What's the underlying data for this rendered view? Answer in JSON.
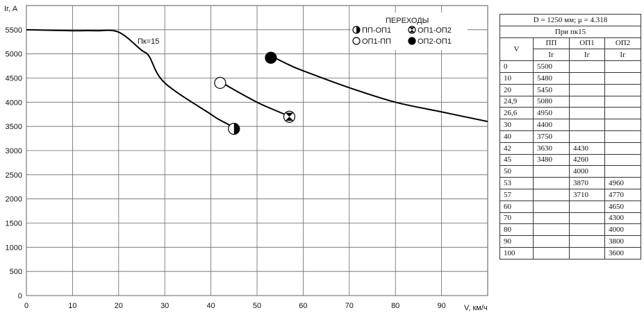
{
  "chart_data": {
    "type": "line",
    "y_axis_label": "Iг, А",
    "x_axis_label": "V, км/ч",
    "x_ticks": [
      0,
      10,
      20,
      30,
      40,
      50,
      60,
      70,
      80,
      90
    ],
    "y_ticks": [
      0,
      500,
      1000,
      1500,
      2000,
      2500,
      3000,
      3500,
      4000,
      4500,
      5000,
      5500
    ],
    "xlim": [
      0,
      100
    ],
    "ylim": [
      0,
      6000
    ],
    "grid": true,
    "legend_position": "top-right",
    "series": [
      {
        "name": "ПП",
        "x": [
          0,
          10,
          15,
          20,
          24.9,
          26.6,
          30,
          40,
          42,
          45
        ],
        "y": [
          5500,
          5480,
          5480,
          5450,
          5080,
          4950,
          4400,
          3750,
          3630,
          3480
        ]
      },
      {
        "name": "ОП1",
        "x": [
          42,
          45,
          50,
          53,
          57
        ],
        "y": [
          4430,
          4260,
          4000,
          3870,
          3710
        ]
      },
      {
        "name": "ОП2",
        "x": [
          53,
          57,
          60,
          70,
          80,
          90,
          100
        ],
        "y": [
          4960,
          4770,
          4650,
          4300,
          4000,
          3800,
          3600
        ]
      }
    ],
    "curve_annotation": "Пк=15",
    "legend": {
      "title": "ПЕРЕХОДЫ",
      "items": [
        {
          "label": "ПП-ОП1",
          "marker": "half-black-circle"
        },
        {
          "label": "ОП1-ОП2",
          "marker": "hourglass-circle"
        },
        {
          "label": "ОП1-ПП",
          "marker": "open-circle"
        },
        {
          "label": "ОП2-ОП1",
          "marker": "filled-circle"
        }
      ]
    },
    "transition_markers": [
      {
        "marker": "open-circle",
        "x": 42,
        "y": 4400
      },
      {
        "marker": "half-black-circle",
        "x": 45,
        "y": 3450
      },
      {
        "marker": "hourglass-circle",
        "x": 57,
        "y": 3700
      },
      {
        "marker": "filled-circle",
        "x": 53,
        "y": 4920
      }
    ]
  },
  "table": {
    "title": "D = 1250 мм; μ = 4.318",
    "subtitle": "При пк15",
    "v_header": "V",
    "columns": [
      "ПП",
      "ОП1",
      "ОП2"
    ],
    "unit": "Iг",
    "rows": [
      {
        "v": "0",
        "pp": "5500",
        "op1": "",
        "op2": ""
      },
      {
        "v": "10",
        "pp": "5480",
        "op1": "",
        "op2": ""
      },
      {
        "v": "20",
        "pp": "5450",
        "op1": "",
        "op2": ""
      },
      {
        "v": "24,9",
        "pp": "5080",
        "op1": "",
        "op2": ""
      },
      {
        "v": "26,6",
        "pp": "4950",
        "op1": "",
        "op2": ""
      },
      {
        "v": "30",
        "pp": "4400",
        "op1": "",
        "op2": ""
      },
      {
        "v": "40",
        "pp": "3750",
        "op1": "",
        "op2": ""
      },
      {
        "v": "42",
        "pp": "3630",
        "op1": "4430",
        "op2": ""
      },
      {
        "v": "45",
        "pp": "3480",
        "op1": "4260",
        "op2": ""
      },
      {
        "v": "50",
        "pp": "",
        "op1": "4000",
        "op2": ""
      },
      {
        "v": "53",
        "pp": "",
        "op1": "3870",
        "op2": "4960"
      },
      {
        "v": "57",
        "pp": "",
        "op1": "3710",
        "op2": "4770"
      },
      {
        "v": "60",
        "pp": "",
        "op1": "",
        "op2": "4650"
      },
      {
        "v": "70",
        "pp": "",
        "op1": "",
        "op2": "4300"
      },
      {
        "v": "80",
        "pp": "",
        "op1": "",
        "op2": "4000"
      },
      {
        "v": "90",
        "pp": "",
        "op1": "",
        "op2": "3800"
      },
      {
        "v": "100",
        "pp": "",
        "op1": "",
        "op2": "3600"
      }
    ]
  }
}
